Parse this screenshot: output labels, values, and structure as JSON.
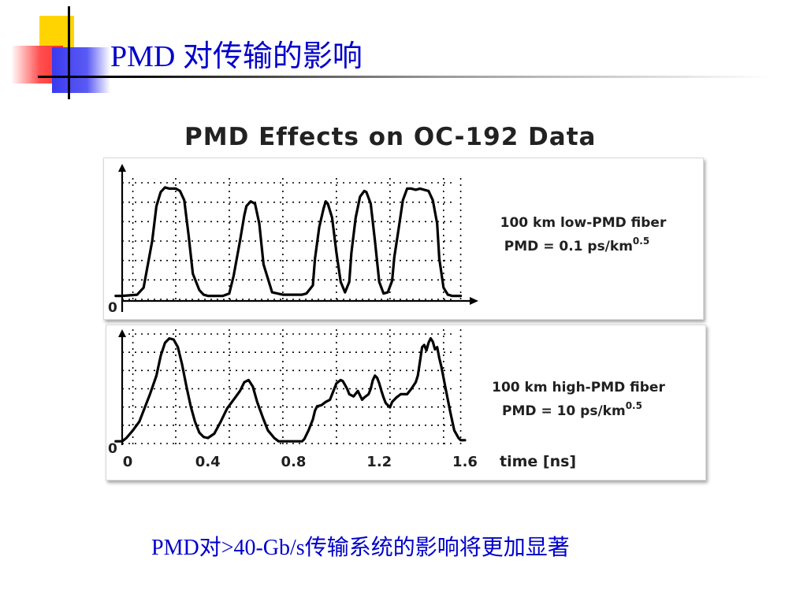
{
  "slide": {
    "title": "PMD 对传输的影响",
    "caption": "PMD对>40-Gb/s传输系统的影响将更加显著"
  },
  "colors": {
    "title_blue": "#0000cc",
    "decor_yellow": "#ffd400",
    "decor_red": "#ff3030",
    "decor_blue": "#3a3af0",
    "label_red": "#b00000",
    "label_dark": "#202020"
  },
  "chart_data": {
    "type": "line",
    "title": "PMD Effects on OC-192 Data",
    "xlabel": "time [ns]",
    "x_ticks": [
      "0",
      "0.4",
      "0.8",
      "1.2",
      "1.6"
    ],
    "xlim": [
      0,
      1.6
    ],
    "ylim": [
      0,
      1
    ],
    "y_zero_label": "0",
    "grid": true,
    "panels": [
      {
        "name": "100 km low-PMD fiber",
        "pmd_label": "PMD = 0.1 ps/km",
        "pmd_exp": "0.5",
        "x": [
          -0.03,
          0,
          0.07,
          0.1,
          0.14,
          0.16,
          0.18,
          0.2,
          0.22,
          0.25,
          0.27,
          0.29,
          0.31,
          0.33,
          0.36,
          0.38,
          0.4,
          0.43,
          0.47,
          0.5,
          0.52,
          0.55,
          0.57,
          0.58,
          0.6,
          0.62,
          0.64,
          0.66,
          0.7,
          0.75,
          0.8,
          0.84,
          0.86,
          0.89,
          0.9,
          0.92,
          0.94,
          0.95,
          0.96,
          0.98,
          1.0,
          1.02,
          1.04,
          1.06,
          1.07,
          1.09,
          1.11,
          1.13,
          1.14,
          1.16,
          1.18,
          1.2,
          1.22,
          1.24,
          1.26,
          1.27,
          1.29,
          1.31,
          1.33,
          1.35,
          1.37,
          1.39,
          1.41,
          1.43,
          1.45,
          1.47,
          1.48,
          1.5,
          1.52,
          1.54,
          1.56,
          1.58
        ],
        "y": [
          0.03,
          0.03,
          0.04,
          0.1,
          0.5,
          0.8,
          0.92,
          0.96,
          0.95,
          0.95,
          0.93,
          0.85,
          0.55,
          0.22,
          0.08,
          0.04,
          0.03,
          0.03,
          0.03,
          0.05,
          0.2,
          0.5,
          0.72,
          0.8,
          0.84,
          0.82,
          0.65,
          0.3,
          0.06,
          0.04,
          0.04,
          0.04,
          0.05,
          0.12,
          0.35,
          0.62,
          0.78,
          0.84,
          0.82,
          0.7,
          0.4,
          0.15,
          0.06,
          0.15,
          0.4,
          0.7,
          0.88,
          0.93,
          0.92,
          0.82,
          0.5,
          0.15,
          0.05,
          0.06,
          0.16,
          0.36,
          0.6,
          0.85,
          0.95,
          0.95,
          0.94,
          0.95,
          0.94,
          0.93,
          0.85,
          0.65,
          0.35,
          0.1,
          0.04,
          0.03,
          0.03,
          0.03
        ]
      },
      {
        "name": "100 km high-PMD fiber",
        "pmd_label": "PMD = 10 ps/km",
        "pmd_exp": "0.5",
        "x": [
          -0.03,
          0,
          0.02,
          0.05,
          0.08,
          0.1,
          0.13,
          0.16,
          0.18,
          0.2,
          0.22,
          0.24,
          0.26,
          0.28,
          0.3,
          0.32,
          0.34,
          0.36,
          0.38,
          0.4,
          0.43,
          0.46,
          0.49,
          0.52,
          0.55,
          0.57,
          0.59,
          0.61,
          0.63,
          0.66,
          0.68,
          0.71,
          0.73,
          0.76,
          0.8,
          0.84,
          0.85,
          0.87,
          0.89,
          0.9,
          0.91,
          0.93,
          0.95,
          0.97,
          0.99,
          1.0,
          1.02,
          1.03,
          1.05,
          1.06,
          1.08,
          1.1,
          1.12,
          1.13,
          1.15,
          1.16,
          1.17,
          1.18,
          1.19,
          1.2,
          1.21,
          1.22,
          1.23,
          1.25,
          1.26,
          1.28,
          1.3,
          1.33,
          1.35,
          1.37,
          1.38,
          1.39,
          1.4,
          1.41,
          1.42,
          1.43,
          1.44,
          1.45,
          1.46,
          1.47,
          1.48,
          1.49,
          1.51,
          1.53,
          1.55,
          1.57,
          1.58,
          1.6
        ],
        "y": [
          0.02,
          0.02,
          0.05,
          0.12,
          0.2,
          0.3,
          0.45,
          0.62,
          0.8,
          0.92,
          0.96,
          0.95,
          0.88,
          0.72,
          0.52,
          0.34,
          0.2,
          0.1,
          0.06,
          0.05,
          0.09,
          0.2,
          0.32,
          0.4,
          0.48,
          0.56,
          0.58,
          0.52,
          0.38,
          0.22,
          0.12,
          0.05,
          0.02,
          0.02,
          0.02,
          0.02,
          0.04,
          0.12,
          0.22,
          0.3,
          0.34,
          0.35,
          0.38,
          0.4,
          0.5,
          0.55,
          0.58,
          0.57,
          0.5,
          0.45,
          0.43,
          0.48,
          0.4,
          0.42,
          0.45,
          0.5,
          0.58,
          0.62,
          0.6,
          0.55,
          0.48,
          0.42,
          0.37,
          0.33,
          0.38,
          0.42,
          0.45,
          0.45,
          0.5,
          0.56,
          0.62,
          0.75,
          0.88,
          0.9,
          0.85,
          0.92,
          0.96,
          0.93,
          0.86,
          0.88,
          0.78,
          0.7,
          0.5,
          0.3,
          0.12,
          0.05,
          0.03,
          0.03
        ]
      }
    ]
  }
}
